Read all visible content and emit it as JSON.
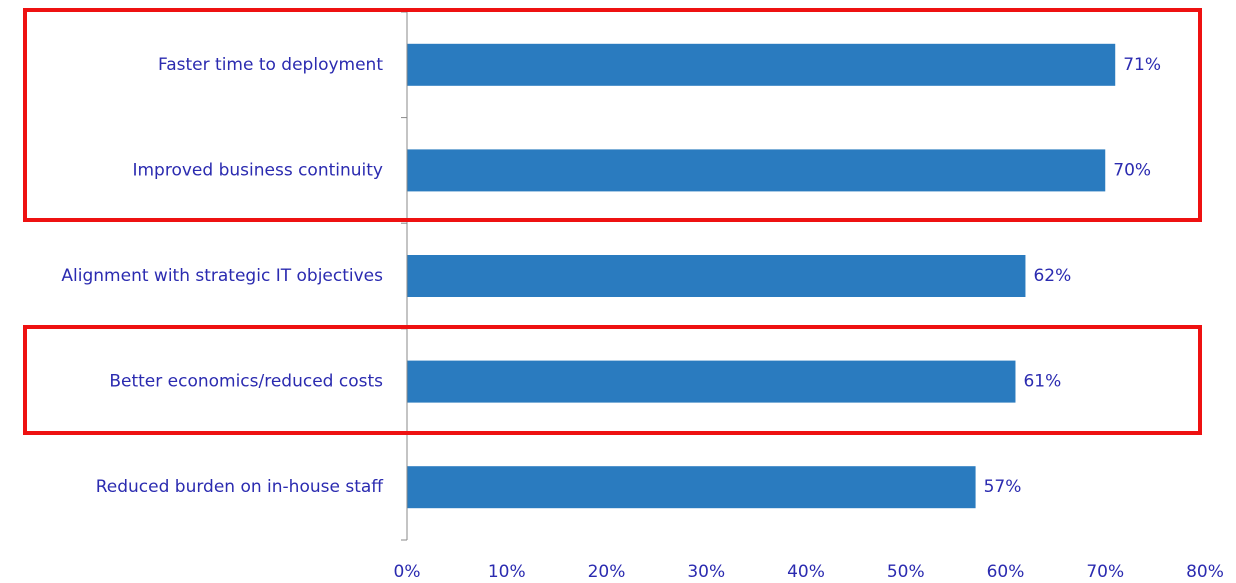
{
  "chart_data": {
    "type": "hbar",
    "categories": [
      "Faster time to deployment",
      "Improved business continuity",
      "Alignment with strategic IT objectives",
      "Better economics/reduced costs",
      "Reduced burden on in-house staff"
    ],
    "values": [
      71,
      70,
      62,
      61,
      57
    ],
    "value_labels": [
      "71%",
      "70%",
      "62%",
      "61%",
      "57%"
    ],
    "color": "#2a7bbf",
    "xlim": [
      0,
      80
    ],
    "xticks": [
      {
        "value": 0,
        "label": "0%"
      },
      {
        "value": 10,
        "label": "10%"
      },
      {
        "value": 20,
        "label": "20%"
      },
      {
        "value": 30,
        "label": "30%"
      },
      {
        "value": 40,
        "label": "40%"
      },
      {
        "value": 50,
        "label": "50%"
      },
      {
        "value": 60,
        "label": "60%"
      },
      {
        "value": 70,
        "label": "70%"
      },
      {
        "value": 80,
        "label": "80%"
      }
    ]
  }
}
